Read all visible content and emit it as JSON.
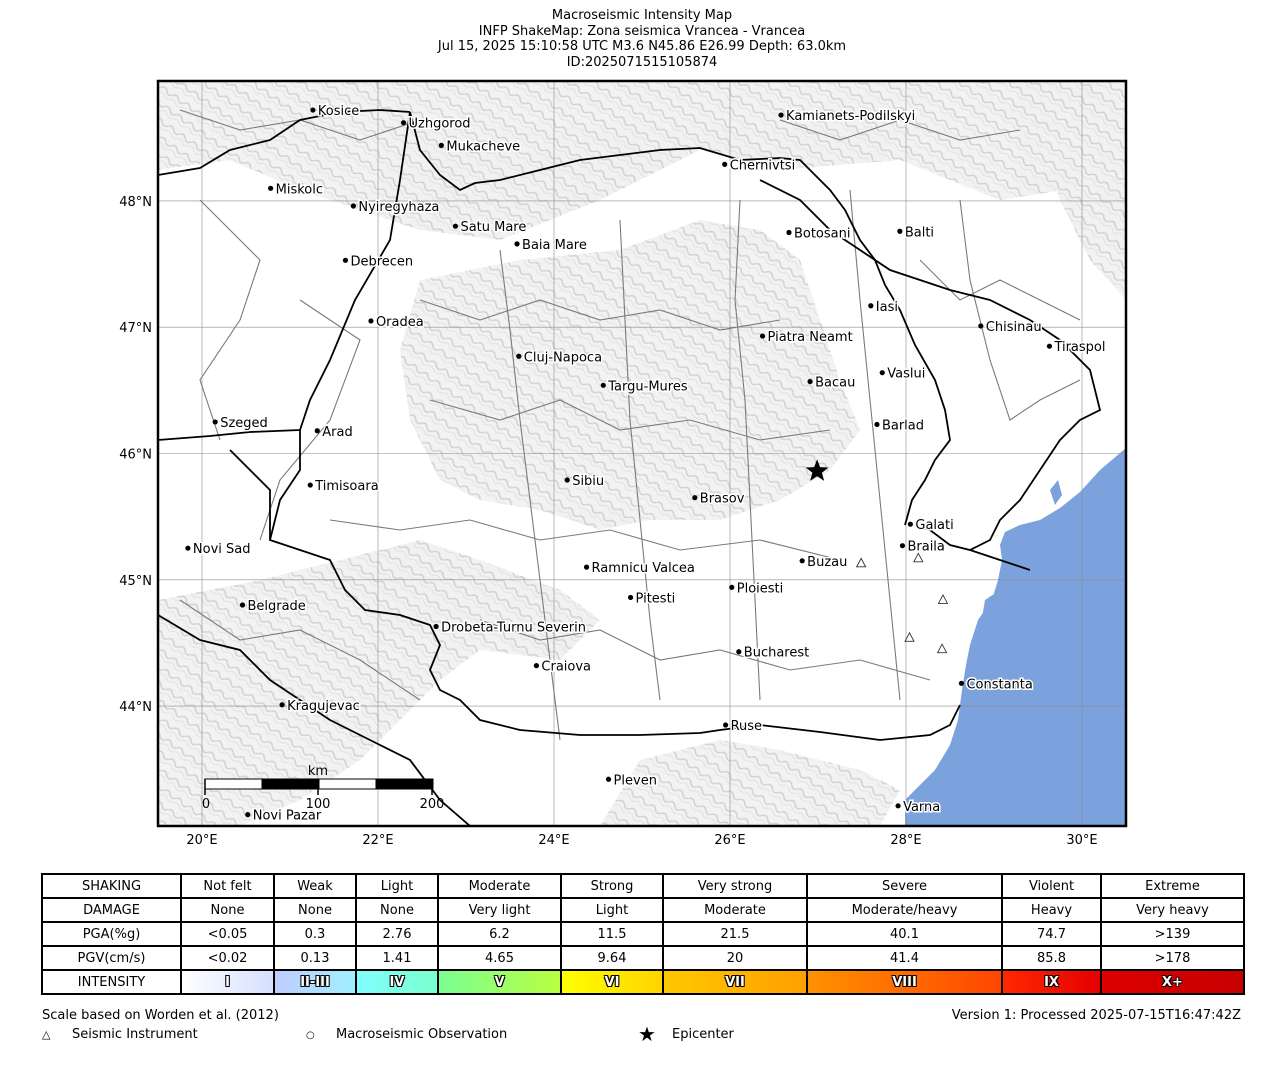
{
  "title": {
    "line1": "Macroseismic Intensity Map",
    "line2": "INFP ShakeMap: Zona seismica Vrancea - Vrancea",
    "line3": "Jul 15, 2025 15:10:58 UTC M3.6 N45.86 E26.99 Depth: 63.0km",
    "line4": "ID:2025071515105874"
  },
  "map": {
    "lon_range": [
      19.5,
      30.5
    ],
    "lat_range": [
      43.05,
      48.95
    ],
    "lon_ticks": [
      {
        "value": 20,
        "label": "20°E"
      },
      {
        "value": 22,
        "label": "22°E"
      },
      {
        "value": 24,
        "label": "24°E"
      },
      {
        "value": 26,
        "label": "26°E"
      },
      {
        "value": 28,
        "label": "28°E"
      },
      {
        "value": 30,
        "label": "30°E"
      }
    ],
    "lat_ticks": [
      {
        "value": 48,
        "label": "48°N"
      },
      {
        "value": 47,
        "label": "47°N"
      },
      {
        "value": 46,
        "label": "46°N"
      },
      {
        "value": 45,
        "label": "45°N"
      },
      {
        "value": 44,
        "label": "44°N"
      }
    ],
    "epicenter": {
      "lon": 26.99,
      "lat": 45.86
    },
    "sea_color": "#7ba2dc",
    "cities": [
      {
        "name": "Kosice",
        "lon": 21.26,
        "lat": 48.72
      },
      {
        "name": "Uzhgorod",
        "lon": 22.29,
        "lat": 48.62
      },
      {
        "name": "Mukacheve",
        "lon": 22.72,
        "lat": 48.44
      },
      {
        "name": "Kamianets-Podilskyi",
        "lon": 26.58,
        "lat": 48.68
      },
      {
        "name": "Chernivtsi",
        "lon": 25.94,
        "lat": 48.29
      },
      {
        "name": "Miskolc",
        "lon": 20.78,
        "lat": 48.1
      },
      {
        "name": "Nyiregyhaza",
        "lon": 21.72,
        "lat": 47.96
      },
      {
        "name": "Satu Mare",
        "lon": 22.88,
        "lat": 47.8
      },
      {
        "name": "Baia Mare",
        "lon": 23.58,
        "lat": 47.66
      },
      {
        "name": "Botosani",
        "lon": 26.67,
        "lat": 47.75
      },
      {
        "name": "Balti",
        "lon": 27.93,
        "lat": 47.76
      },
      {
        "name": "Debrecen",
        "lon": 21.63,
        "lat": 47.53
      },
      {
        "name": "Iasi",
        "lon": 27.6,
        "lat": 47.17
      },
      {
        "name": "Oradea",
        "lon": 21.92,
        "lat": 47.05
      },
      {
        "name": "Chisinau",
        "lon": 28.85,
        "lat": 47.01
      },
      {
        "name": "Piatra Neamt",
        "lon": 26.37,
        "lat": 46.93
      },
      {
        "name": "Tiraspol",
        "lon": 29.63,
        "lat": 46.85
      },
      {
        "name": "Cluj-Napoca",
        "lon": 23.6,
        "lat": 46.77
      },
      {
        "name": "Targu-Mures",
        "lon": 24.56,
        "lat": 46.54
      },
      {
        "name": "Bacau",
        "lon": 26.91,
        "lat": 46.57
      },
      {
        "name": "Vaslui",
        "lon": 27.73,
        "lat": 46.64
      },
      {
        "name": "Szeged",
        "lon": 20.15,
        "lat": 46.25
      },
      {
        "name": "Arad",
        "lon": 21.31,
        "lat": 46.18
      },
      {
        "name": "Barlad",
        "lon": 27.67,
        "lat": 46.23
      },
      {
        "name": "Sibiu",
        "lon": 24.15,
        "lat": 45.79
      },
      {
        "name": "Timisoara",
        "lon": 21.23,
        "lat": 45.75
      },
      {
        "name": "Brasov",
        "lon": 25.6,
        "lat": 45.65
      },
      {
        "name": "Galati",
        "lon": 28.05,
        "lat": 45.44
      },
      {
        "name": "Novi Sad",
        "lon": 19.84,
        "lat": 45.25
      },
      {
        "name": "Braila",
        "lon": 27.96,
        "lat": 45.27
      },
      {
        "name": "Buzau",
        "lon": 26.82,
        "lat": 45.15
      },
      {
        "name": "Ramnicu Valcea",
        "lon": 24.37,
        "lat": 45.1
      },
      {
        "name": "Ploiesti",
        "lon": 26.02,
        "lat": 44.94
      },
      {
        "name": "Pitesti",
        "lon": 24.87,
        "lat": 44.86
      },
      {
        "name": "Belgrade",
        "lon": 20.46,
        "lat": 44.8
      },
      {
        "name": "Drobeta-Turnu Severin",
        "lon": 22.66,
        "lat": 44.63
      },
      {
        "name": "Bucharest",
        "lon": 26.1,
        "lat": 44.43
      },
      {
        "name": "Craiova",
        "lon": 23.8,
        "lat": 44.32
      },
      {
        "name": "Constanta",
        "lon": 28.63,
        "lat": 44.18
      },
      {
        "name": "Kragujevac",
        "lon": 20.91,
        "lat": 44.01
      },
      {
        "name": "Ruse",
        "lon": 25.95,
        "lat": 43.85
      },
      {
        "name": "Pleven",
        "lon": 24.62,
        "lat": 43.42
      },
      {
        "name": "Varna",
        "lon": 27.91,
        "lat": 43.21
      },
      {
        "name": "Novi Pazar",
        "lon": 20.52,
        "lat": 43.14
      }
    ],
    "instruments": [
      {
        "lon": 27.49,
        "lat": 45.13
      },
      {
        "lon": 28.14,
        "lat": 45.17
      },
      {
        "lon": 28.42,
        "lat": 44.84
      },
      {
        "lon": 28.04,
        "lat": 44.54
      },
      {
        "lon": 28.41,
        "lat": 44.45
      }
    ],
    "scale_bar": {
      "unit": "km",
      "labels": [
        "0",
        "100",
        "200"
      ]
    }
  },
  "legend_table": {
    "rows": [
      {
        "header": "SHAKING",
        "cells": [
          "Not felt",
          "Weak",
          "Light",
          "Moderate",
          "Strong",
          "Very strong",
          "Severe",
          "Violent",
          "Extreme"
        ]
      },
      {
        "header": "DAMAGE",
        "cells": [
          "None",
          "None",
          "None",
          "Very light",
          "Light",
          "Moderate",
          "Moderate/heavy",
          "Heavy",
          "Very heavy"
        ]
      },
      {
        "header": "PGA(%g)",
        "cells": [
          "<0.05",
          "0.3",
          "2.76",
          "6.2",
          "11.5",
          "21.5",
          "40.1",
          "74.7",
          ">139"
        ]
      },
      {
        "header": "PGV(cm/s)",
        "cells": [
          "<0.02",
          "0.13",
          "1.41",
          "4.65",
          "9.64",
          "20",
          "41.4",
          "85.8",
          ">178"
        ]
      }
    ],
    "intensity_header": "INTENSITY",
    "intensity": [
      "I",
      "II-III",
      "IV",
      "V",
      "VI",
      "VII",
      "VIII",
      "IX",
      "X+"
    ],
    "intensity_gradients": [
      [
        "#ffffff",
        "#d6dfff"
      ],
      [
        "#bfccff",
        "#9ff0ff"
      ],
      [
        "#80ffff",
        "#7affce"
      ],
      [
        "#7aff93",
        "#b9ff3f"
      ],
      [
        "#ffff00",
        "#ffd500"
      ],
      [
        "#ffc800",
        "#ff9f00"
      ],
      [
        "#ff9100",
        "#ff4500"
      ],
      [
        "#ff2800",
        "#e40000"
      ],
      [
        "#dc0000",
        "#c80000"
      ]
    ]
  },
  "footer": {
    "scale_note": "Scale based on Worden et al. (2012)",
    "version": "Version 1: Processed 2025-07-15T16:47:42Z",
    "legend_seismic": "Seismic Instrument",
    "legend_macro": "Macroseismic Observation",
    "legend_epicenter": "Epicenter"
  }
}
